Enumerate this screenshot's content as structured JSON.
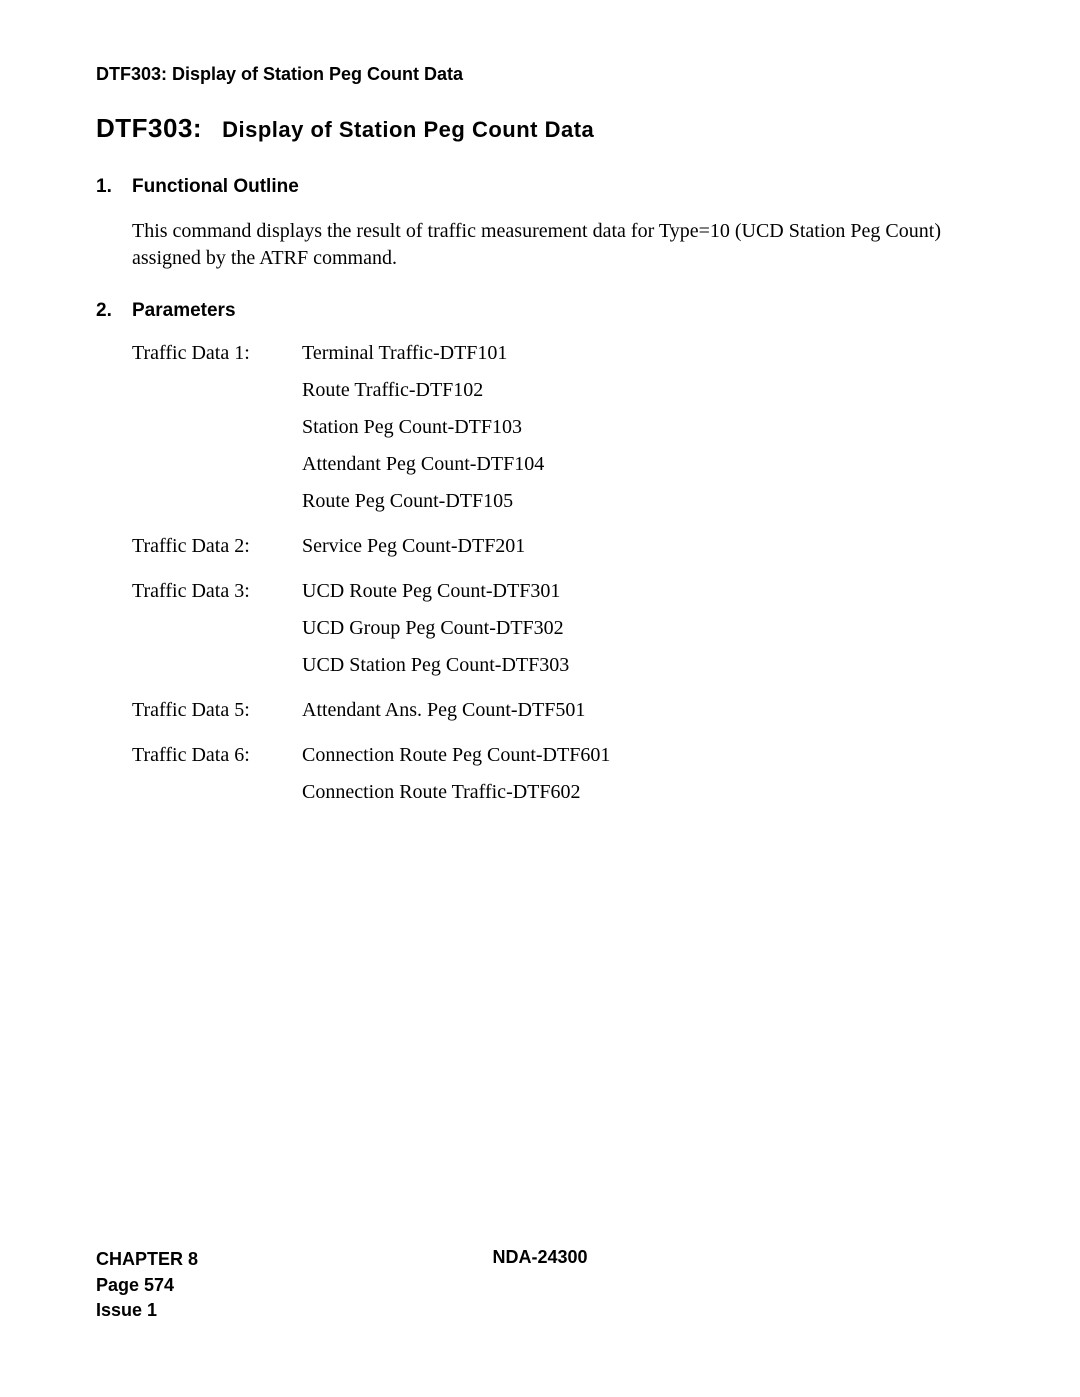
{
  "header": {
    "title": "DTF303: Display of Station Peg Count Data"
  },
  "mainTitle": {
    "code": "DTF303:",
    "desc": "Display of Station Peg Count Data"
  },
  "sections": {
    "functional": {
      "number": "1.",
      "heading": "Functional Outline",
      "body": "This command displays the result of traffic measurement data for Type=10 (UCD Station Peg Count) assigned by the ATRF command."
    },
    "parameters": {
      "number": "2.",
      "heading": "Parameters",
      "groups": [
        {
          "label": "Traffic Data 1:",
          "values": [
            "Terminal Traffic-DTF101",
            "Route Traffic-DTF102",
            "Station Peg Count-DTF103",
            "Attendant Peg Count-DTF104",
            "Route Peg Count-DTF105"
          ]
        },
        {
          "label": "Traffic Data 2:",
          "values": [
            "Service Peg Count-DTF201"
          ]
        },
        {
          "label": "Traffic Data 3:",
          "values": [
            "UCD Route Peg Count-DTF301",
            "UCD Group Peg Count-DTF302",
            "UCD Station Peg Count-DTF303"
          ]
        },
        {
          "label": "Traffic Data 5:",
          "values": [
            "Attendant Ans. Peg Count-DTF501"
          ]
        },
        {
          "label": "Traffic Data 6:",
          "values": [
            "Connection Route Peg Count-DTF601",
            "Connection Route Traffic-DTF602"
          ]
        }
      ]
    }
  },
  "footer": {
    "chapter": "CHAPTER 8",
    "page": "Page 574",
    "issue": "Issue 1",
    "docId": "NDA-24300"
  }
}
